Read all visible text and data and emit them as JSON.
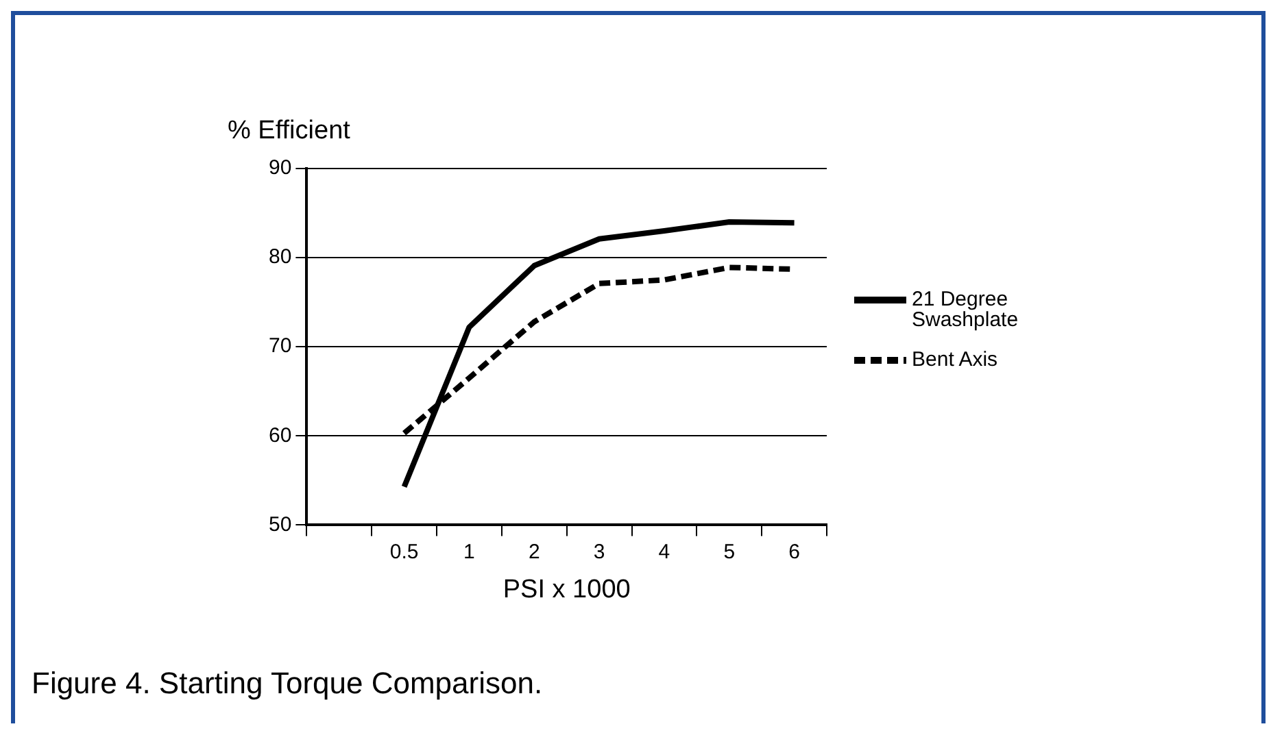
{
  "chart_data": {
    "type": "line",
    "ylabel": "% Efficient",
    "xlabel": "PSI x 1000",
    "annotations": [
      "Figure 4. Starting Torque Comparison."
    ],
    "categories": [
      null,
      "0.5",
      "1",
      "2",
      "3",
      "4",
      "5",
      "6"
    ],
    "series": [
      {
        "name": "21 Degree Swashplate",
        "color": "#000000",
        "line_style": "solid",
        "values": [
          null,
          54.3,
          72.2,
          79.1,
          82.1,
          83,
          84,
          83.9
        ]
      },
      {
        "name": "Bent Axis",
        "color": "#000000",
        "line_style": "dashed",
        "values": [
          null,
          60.3,
          66.5,
          72.8,
          77.1,
          77.5,
          78.9,
          78.7
        ]
      }
    ],
    "ylim": [
      50,
      90
    ],
    "yticks": [
      50,
      60,
      70,
      80,
      90
    ],
    "grid": "y",
    "legend": "right",
    "marker": "none"
  }
}
